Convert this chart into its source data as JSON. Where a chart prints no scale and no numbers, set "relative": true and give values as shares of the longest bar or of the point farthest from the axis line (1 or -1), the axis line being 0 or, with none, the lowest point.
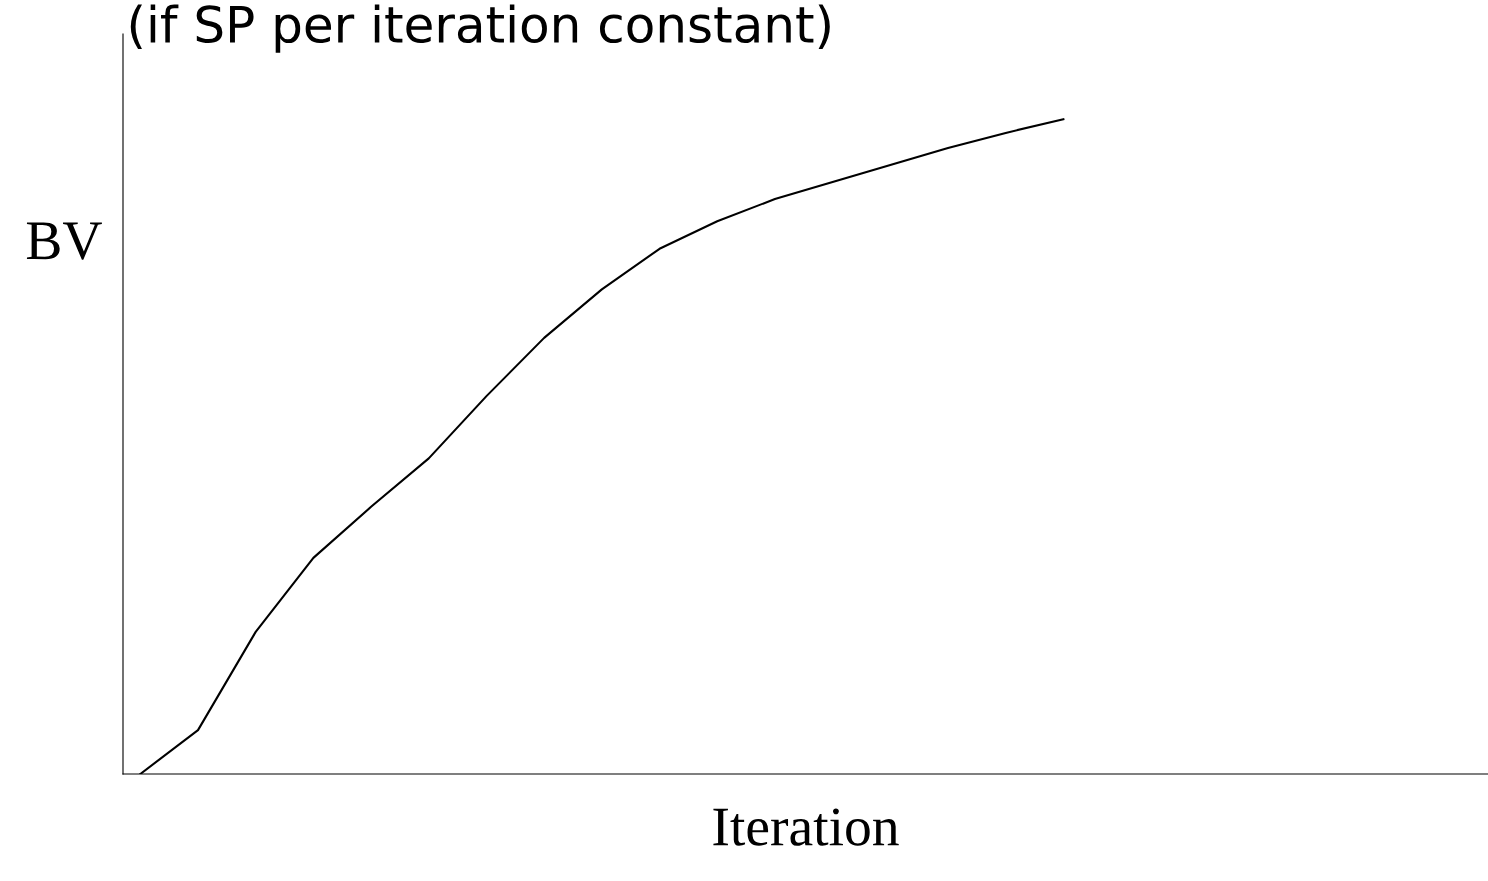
{
  "chart_data": {
    "type": "line",
    "relative": true,
    "title": "(if SP per iteration constant)",
    "xlabel": "Iteration",
    "ylabel": "BV",
    "categories": [
      null,
      null,
      null,
      null,
      null,
      null,
      null,
      null,
      null,
      null,
      null,
      null,
      null,
      null,
      null,
      null,
      null
    ],
    "series": [
      {
        "color": "#000000",
        "values": [
          0,
          0.067,
          0.217,
          0.33,
          0.408,
          0.482,
          0.577,
          0.666,
          0.74,
          0.802,
          0.844,
          0.878,
          0.904,
          0.93,
          0.956,
          0.979,
          1
        ]
      }
    ],
    "marker": "none",
    "line_style": "solid",
    "grid": false,
    "legend": false
  }
}
